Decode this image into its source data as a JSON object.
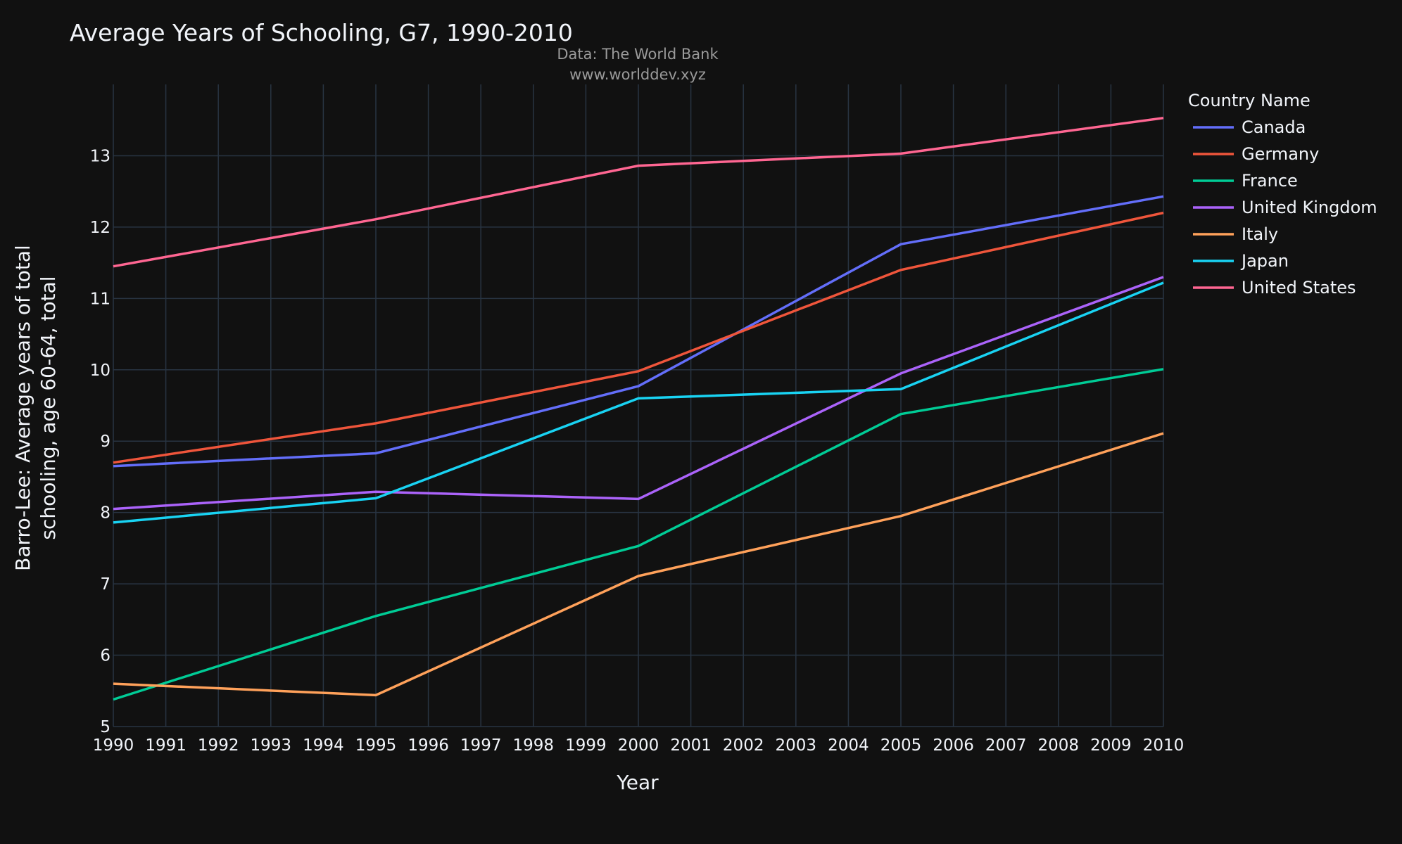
{
  "chart_data": {
    "type": "line",
    "title": "Average Years of Schooling, G7, 1990-2010",
    "source_line1": "Data: The World Bank",
    "source_line2": "www.worlddev.xyz",
    "xlabel": "Year",
    "ylabel_line1": "Barro-Lee: Average years of total",
    "ylabel_line2": "schooling, age 60-64, total",
    "legend_title": "Country Name",
    "legend_position": "right",
    "grid": true,
    "xlim": [
      1990,
      2010
    ],
    "ylim": [
      5,
      14
    ],
    "x_ticks": [
      1990,
      1991,
      1992,
      1993,
      1994,
      1995,
      1996,
      1997,
      1998,
      1999,
      2000,
      2001,
      2002,
      2003,
      2004,
      2005,
      2006,
      2007,
      2008,
      2009,
      2010
    ],
    "y_ticks": [
      5,
      6,
      7,
      8,
      9,
      10,
      11,
      12,
      13
    ],
    "x": [
      1990,
      1995,
      2000,
      2005,
      2010
    ],
    "series": [
      {
        "name": "Canada",
        "color": "#636efa",
        "values": [
          8.65,
          8.83,
          9.77,
          11.76,
          12.43
        ]
      },
      {
        "name": "Germany",
        "color": "#ef553b",
        "values": [
          8.7,
          9.25,
          9.98,
          11.4,
          12.2
        ]
      },
      {
        "name": "France",
        "color": "#00cc96",
        "values": [
          5.38,
          6.55,
          7.53,
          9.38,
          10.01
        ]
      },
      {
        "name": "United Kingdom",
        "color": "#ab63fa",
        "values": [
          8.05,
          8.29,
          8.19,
          9.95,
          11.3
        ]
      },
      {
        "name": "Italy",
        "color": "#ffa15a",
        "values": [
          5.6,
          5.44,
          7.11,
          7.95,
          9.11
        ]
      },
      {
        "name": "Japan",
        "color": "#19d3f3",
        "values": [
          7.86,
          8.2,
          9.6,
          9.73,
          11.22
        ]
      },
      {
        "name": "United States",
        "color": "#ff6692",
        "values": [
          11.45,
          12.11,
          12.86,
          13.03,
          13.53
        ]
      }
    ]
  }
}
